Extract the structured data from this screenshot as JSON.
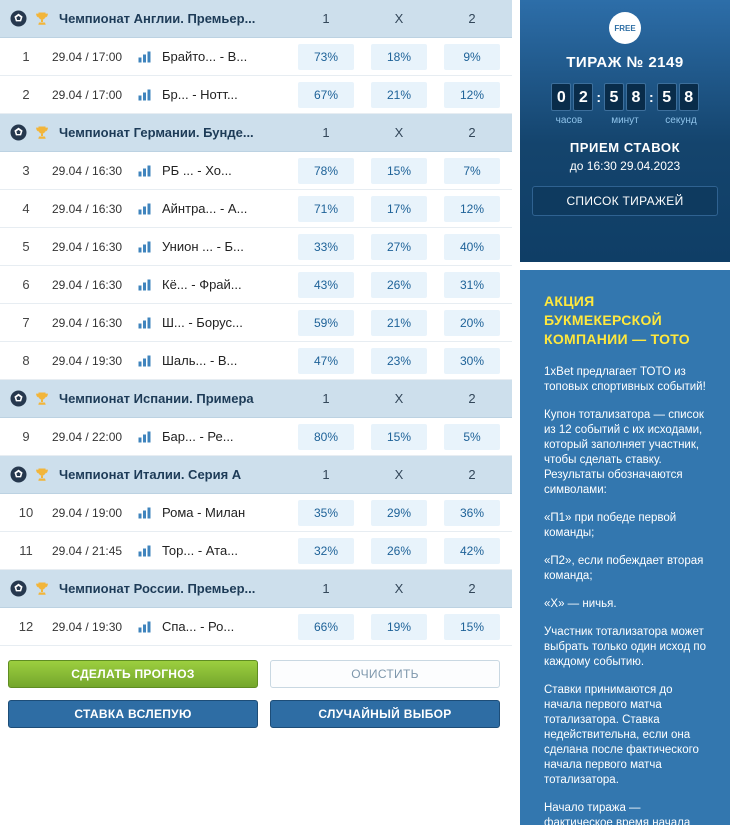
{
  "table": {
    "columns": [
      "1",
      "X",
      "2"
    ],
    "groups": [
      {
        "league": "Чемпионат Англии. Премьер...",
        "rows": [
          {
            "num": "1",
            "datetime": "29.04 / 17:00",
            "teams": "Брайто...  -  В...",
            "p1": "73%",
            "x": "18%",
            "p2": "9%"
          },
          {
            "num": "2",
            "datetime": "29.04 / 17:00",
            "teams": "Бр...  -  Нотт...",
            "p1": "67%",
            "x": "21%",
            "p2": "12%"
          }
        ]
      },
      {
        "league": "Чемпионат Германии. Бунде...",
        "rows": [
          {
            "num": "3",
            "datetime": "29.04 / 16:30",
            "teams": "РБ ...  -  Хо...",
            "p1": "78%",
            "x": "15%",
            "p2": "7%"
          },
          {
            "num": "4",
            "datetime": "29.04 / 16:30",
            "teams": "Айнтра...  -  А...",
            "p1": "71%",
            "x": "17%",
            "p2": "12%"
          },
          {
            "num": "5",
            "datetime": "29.04 / 16:30",
            "teams": "Унион ...  -  Б...",
            "p1": "33%",
            "x": "27%",
            "p2": "40%"
          },
          {
            "num": "6",
            "datetime": "29.04 / 16:30",
            "teams": "Кё...  -  Фрай...",
            "p1": "43%",
            "x": "26%",
            "p2": "31%"
          },
          {
            "num": "7",
            "datetime": "29.04 / 16:30",
            "teams": "Ш...  -  Борус...",
            "p1": "59%",
            "x": "21%",
            "p2": "20%"
          },
          {
            "num": "8",
            "datetime": "29.04 / 19:30",
            "teams": "Шаль...  -  В...",
            "p1": "47%",
            "x": "23%",
            "p2": "30%"
          }
        ]
      },
      {
        "league": "Чемпионат Испании. Примера",
        "rows": [
          {
            "num": "9",
            "datetime": "29.04 / 22:00",
            "teams": "Бар...  -  Ре...",
            "p1": "80%",
            "x": "15%",
            "p2": "5%"
          }
        ]
      },
      {
        "league": "Чемпионат Италии. Серия А",
        "rows": [
          {
            "num": "10",
            "datetime": "29.04 / 19:00",
            "teams": "Рома  -  Милан",
            "p1": "35%",
            "x": "29%",
            "p2": "36%"
          },
          {
            "num": "11",
            "datetime": "29.04 / 21:45",
            "teams": "Тор...  -  Ата...",
            "p1": "32%",
            "x": "26%",
            "p2": "42%"
          }
        ]
      },
      {
        "league": "Чемпионат России. Премьер...",
        "rows": [
          {
            "num": "12",
            "datetime": "29.04 / 19:30",
            "teams": "Спа...  -  Ро...",
            "p1": "66%",
            "x": "19%",
            "p2": "15%"
          }
        ]
      }
    ]
  },
  "buttons": {
    "predict": "СДЕЛАТЬ ПРОГНОЗ",
    "clear": "ОЧИСТИТЬ",
    "blind": "СТАВКА ВСЛЕПУЮ",
    "random": "СЛУЧАЙНЫЙ ВЫБОР"
  },
  "draw": {
    "free_badge": "FREE",
    "title": "ТИРАЖ № 2149",
    "countdown": {
      "digits": [
        "0",
        "2",
        "5",
        "8",
        "5",
        "8"
      ],
      "labels": [
        "часов",
        "минут",
        "секунд"
      ]
    },
    "accept_title": "ПРИЕМ СТАВОК",
    "accept_until": "до 16:30 29.04.2023",
    "list_button": "СПИСОК ТИРАЖЕЙ"
  },
  "promo": {
    "title": "АКЦИЯ\nБУКМЕКЕРСКОЙ\nКОМПАНИИ — ТОТО",
    "paragraphs": [
      "1xBet предлагает ТОТО из топовых спортивных событий!",
      "Купон тотализатора — список из 12 событий с их исходами, который заполняет участник, чтобы сделать ставку. Результаты обозначаются символами:",
      "«П1» при победе первой команды;",
      "«П2», если побеждает вторая команда;",
      "«Х» — ничья.",
      "Участник тотализатора может выбрать только один исход по каждому событию.",
      "Ставки принимаются до начала первого матча тотализатора. Ставка недействительна, если она сделана после фактического начала первого матча тотализатора.",
      "Начало тиража — фактическое время начала"
    ]
  },
  "colors": {
    "accent_yellow": "#ffe83d",
    "green_button": "#7fb32e",
    "blue_button": "#2e6da4",
    "promo_panel_blue": "#3377af",
    "draw_panel_dark": "#14446d",
    "pct_cell_bg": "#e8f3fb",
    "pct_text": "#1e6298",
    "header_row_bg": "#cddfec"
  }
}
